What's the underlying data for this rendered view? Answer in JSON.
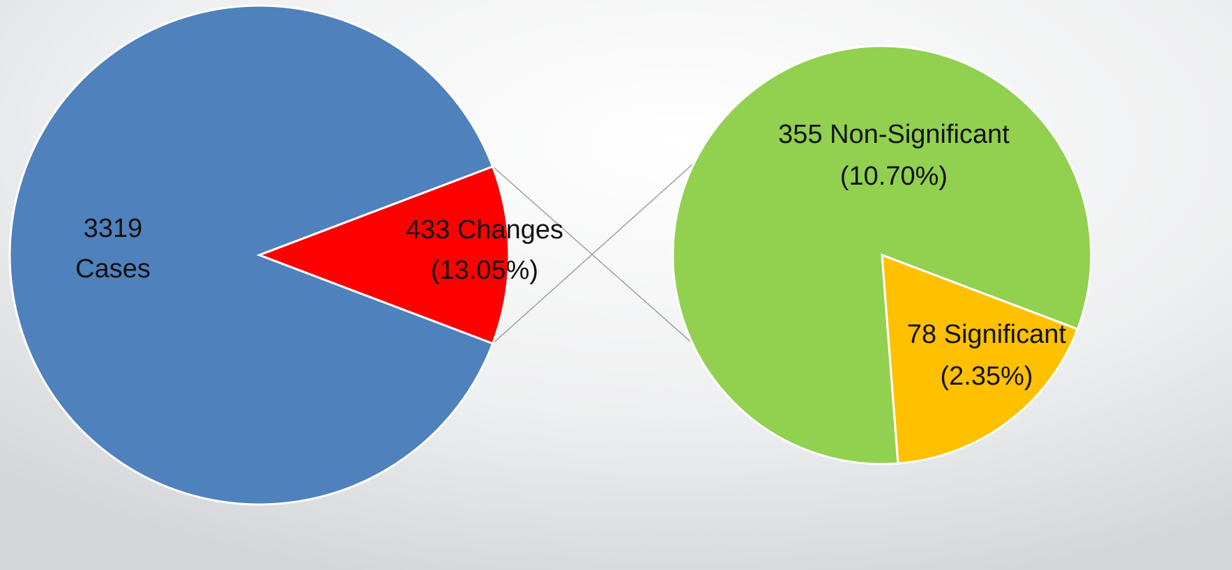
{
  "chart_data": {
    "type": "pie-of-pie",
    "values": [
      3319,
      433
    ],
    "colors": [
      "#4f81bd",
      "#ff0000"
    ],
    "value_labels": [
      [
        "3319",
        "Cases"
      ],
      [
        "433 Changes",
        "(13.05%)"
      ]
    ],
    "secondary": {
      "type": "pie",
      "values": [
        355,
        78
      ],
      "colors": [
        "#92d050",
        "#ffc000"
      ],
      "value_labels": [
        [
          "355 Non-Significant",
          "(10.70%)"
        ],
        [
          "78 Significant",
          "(2.35%)"
        ]
      ]
    }
  }
}
